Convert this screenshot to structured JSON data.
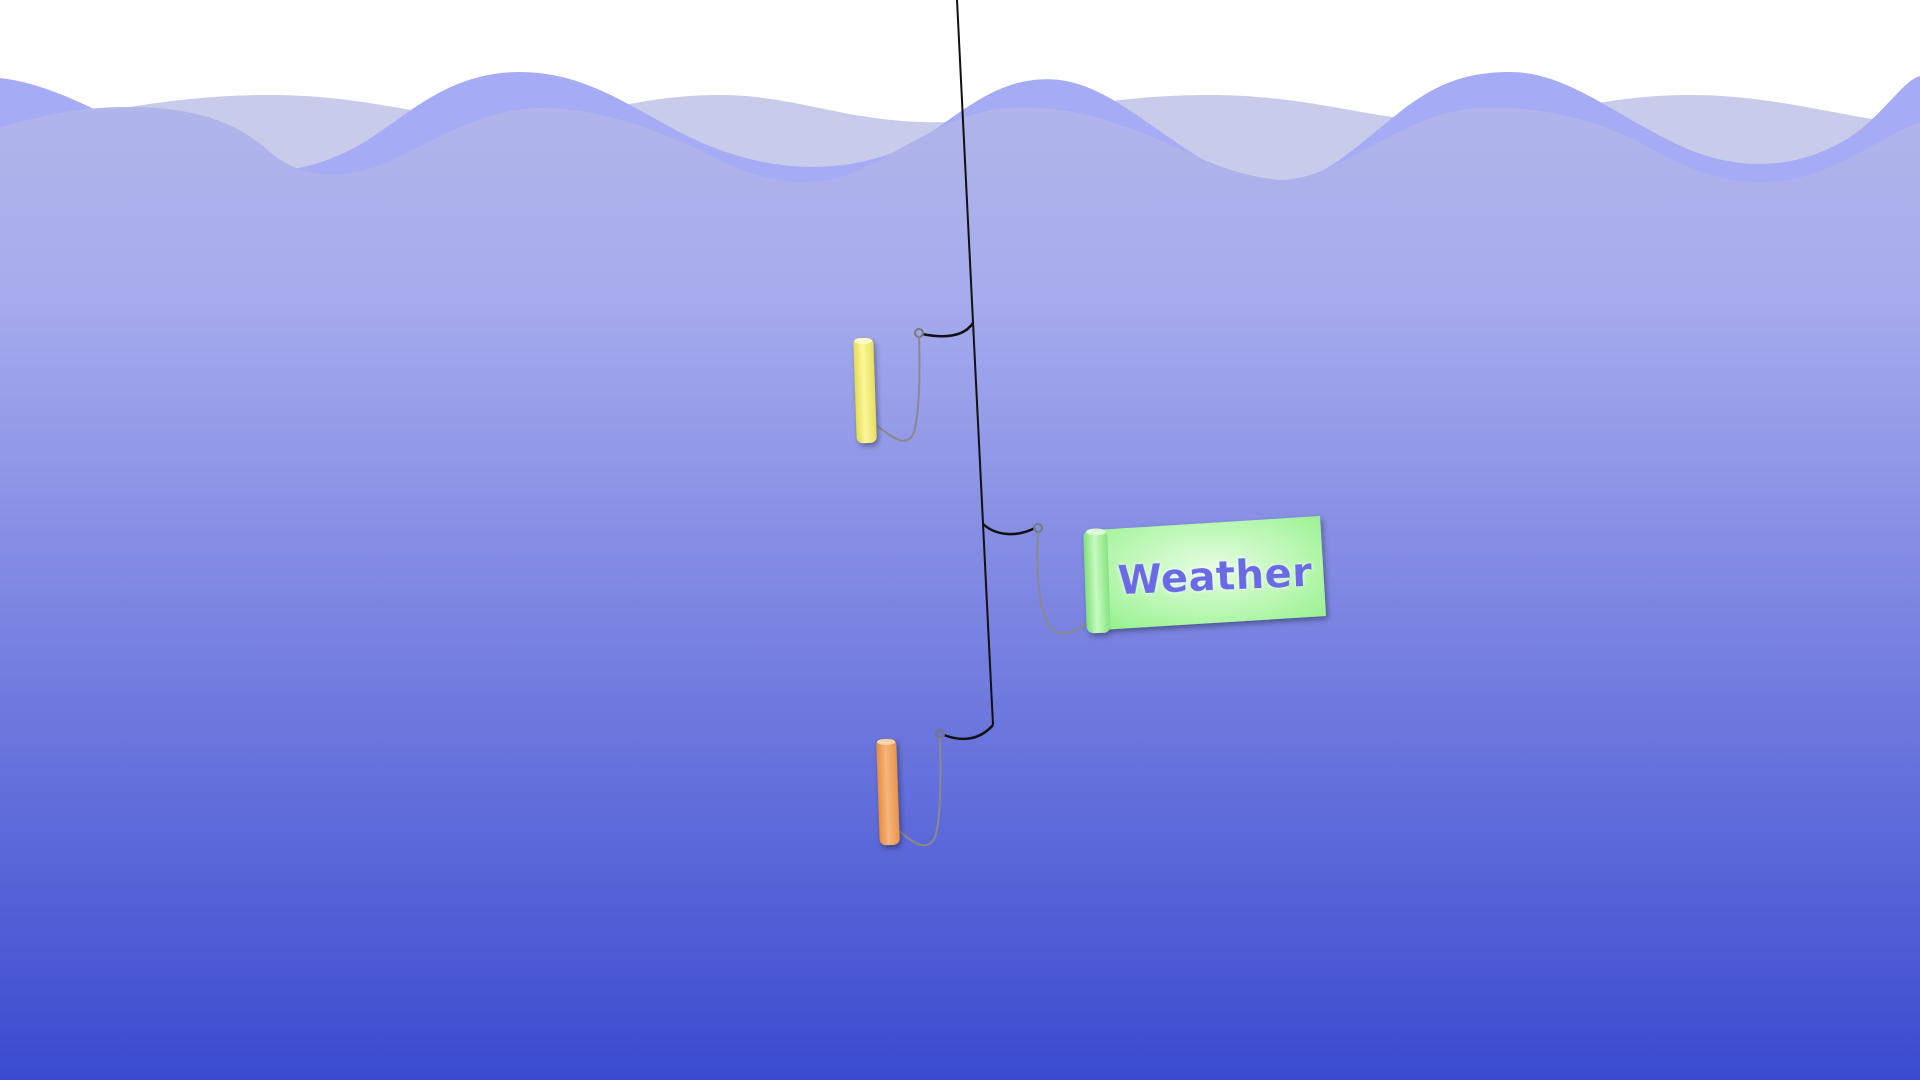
{
  "colors": {
    "sky": "#ffffff",
    "wave_back": "#c9cbea",
    "wave_mid": "#a5acf5",
    "water_top": "#b0b5ea",
    "water_bottom": "#3b4bd0",
    "line": "#111111",
    "string": "#8a8a8a",
    "scroll_yellow": "#f4f07a",
    "scroll_green": "#a6f5a0",
    "scroll_orange": "#f0a45e",
    "label_text": "#6a6ae6"
  },
  "scrolls": [
    {
      "id": "yellow",
      "state": "rolled",
      "label": ""
    },
    {
      "id": "green",
      "state": "unrolled",
      "label": "Weather"
    },
    {
      "id": "orange",
      "state": "rolled",
      "label": ""
    }
  ]
}
